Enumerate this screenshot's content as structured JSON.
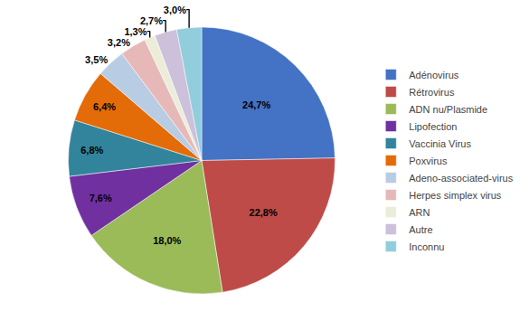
{
  "chart_data": {
    "type": "pie",
    "categories": [
      "Adénovirus",
      "Rétrovirus",
      "ADN nu/Plasmide",
      "Lipofection",
      "Vaccinia Virus",
      "Poxvirus",
      "Adeno-associated-virus",
      "Herpes simplex virus",
      "ARN",
      "Autre",
      "Inconnu"
    ],
    "values": [
      24.7,
      22.8,
      18.0,
      7.6,
      6.8,
      6.4,
      3.5,
      3.2,
      1.3,
      2.7,
      3.0
    ],
    "value_labels": [
      "24,7%",
      "22,8%",
      "18,0%",
      "7,6%",
      "6,8%",
      "6,4%",
      "3,5%",
      "3,2%",
      "1,3%",
      "2,7%",
      "3,0%"
    ],
    "colors": [
      "#4472C4",
      "#BE4B48",
      "#9BBB59",
      "#7030A0",
      "#31849B",
      "#E36C09",
      "#B8CCE4",
      "#E6B9B8",
      "#EBEDD9",
      "#CCC0DA",
      "#92CDDC"
    ],
    "data_labels": true,
    "legend": "right"
  }
}
